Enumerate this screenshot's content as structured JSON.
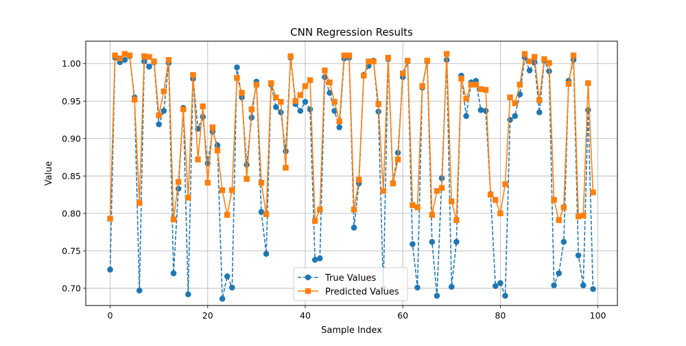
{
  "chart_data": {
    "type": "line",
    "title": "CNN Regression Results",
    "xlabel": "Sample Index",
    "ylabel": "Value",
    "xlim": [
      -5,
      104
    ],
    "ylim": [
      0.677,
      1.03
    ],
    "xticks": [
      0,
      20,
      40,
      60,
      80,
      100
    ],
    "yticks": [
      0.7,
      0.75,
      0.8,
      0.85,
      0.9,
      0.95,
      1.0
    ],
    "x_tick_labels": [
      "0",
      "20",
      "40",
      "60",
      "80",
      "100"
    ],
    "y_tick_labels": [
      "0.70",
      "0.75",
      "0.80",
      "0.85",
      "0.90",
      "0.95",
      "1.00"
    ],
    "grid": true,
    "legend_position": "bottom-center",
    "x": [
      0,
      1,
      2,
      3,
      4,
      5,
      6,
      7,
      8,
      9,
      10,
      11,
      12,
      13,
      14,
      15,
      16,
      17,
      18,
      19,
      20,
      21,
      22,
      23,
      24,
      25,
      26,
      27,
      28,
      29,
      30,
      31,
      32,
      33,
      34,
      35,
      36,
      37,
      38,
      39,
      40,
      41,
      42,
      43,
      44,
      45,
      46,
      47,
      48,
      49,
      50,
      51,
      52,
      53,
      54,
      55,
      56,
      57,
      58,
      59,
      60,
      61,
      62,
      63,
      64,
      65,
      66,
      67,
      68,
      69,
      70,
      71,
      72,
      73,
      74,
      75,
      76,
      77,
      78,
      79,
      80,
      81,
      82,
      83,
      84,
      85,
      86,
      87,
      88,
      89,
      90,
      91,
      92,
      93,
      94,
      95,
      96,
      97,
      98,
      99
    ],
    "series": [
      {
        "name": "True Values",
        "color": "#1f77b4",
        "linestyle": "dashed",
        "marker": "circle",
        "values": [
          0.725,
          1.008,
          1.002,
          1.005,
          1.01,
          0.955,
          0.697,
          1.003,
          0.996,
          1.002,
          0.919,
          0.937,
          1.001,
          0.72,
          0.833,
          0.941,
          0.692,
          0.98,
          0.913,
          0.929,
          0.867,
          0.909,
          0.891,
          0.686,
          0.716,
          0.701,
          0.995,
          0.955,
          0.865,
          0.928,
          0.976,
          0.802,
          0.746,
          0.972,
          0.942,
          0.935,
          0.883,
          1.008,
          0.946,
          0.937,
          0.949,
          0.939,
          0.738,
          0.74,
          0.982,
          0.961,
          0.937,
          0.915,
          1.007,
          1.008,
          0.781,
          0.84,
          0.985,
          0.997,
          1.004,
          0.936,
          0.7,
          1.006,
          0.841,
          0.881,
          0.982,
          1.003,
          0.759,
          0.701,
          0.968,
          1.003,
          0.762,
          0.69,
          0.847,
          1.005,
          0.702,
          0.762,
          0.984,
          0.93,
          0.975,
          0.977,
          0.938,
          0.937,
          0.826,
          0.703,
          0.707,
          0.69,
          0.925,
          0.93,
          0.959,
          1.008,
          0.991,
          1.002,
          0.935,
          1.004,
          0.99,
          0.704,
          0.72,
          0.762,
          0.977,
          1.005,
          0.744,
          0.704,
          0.938,
          0.699
        ]
      },
      {
        "name": "Predicted Values",
        "color": "#ff7f0e",
        "linestyle": "solid",
        "marker": "square",
        "values": [
          0.793,
          1.011,
          1.007,
          1.013,
          1.011,
          0.952,
          0.814,
          1.01,
          1.009,
          1.003,
          0.931,
          0.963,
          1.005,
          0.792,
          0.842,
          0.939,
          0.821,
          0.985,
          0.872,
          0.943,
          0.841,
          0.915,
          0.884,
          0.831,
          0.798,
          0.831,
          0.981,
          0.961,
          0.846,
          0.939,
          0.972,
          0.841,
          0.799,
          0.974,
          0.955,
          0.949,
          0.861,
          1.01,
          0.95,
          0.958,
          0.97,
          0.978,
          0.79,
          0.805,
          0.991,
          0.975,
          0.949,
          0.923,
          1.011,
          1.011,
          0.805,
          0.845,
          0.984,
          1.003,
          1.003,
          0.946,
          0.83,
          1.008,
          0.84,
          0.872,
          0.987,
          1.004,
          0.811,
          0.808,
          0.97,
          1.004,
          0.798,
          0.83,
          0.834,
          1.013,
          0.816,
          0.791,
          0.98,
          0.953,
          0.972,
          0.972,
          0.966,
          0.965,
          0.825,
          0.818,
          0.8,
          0.839,
          0.955,
          0.947,
          0.972,
          1.013,
          1.003,
          1.009,
          0.951,
          1.006,
          1.001,
          0.818,
          0.791,
          0.808,
          0.973,
          1.011,
          0.796,
          0.797,
          0.974,
          0.828
        ]
      }
    ]
  }
}
